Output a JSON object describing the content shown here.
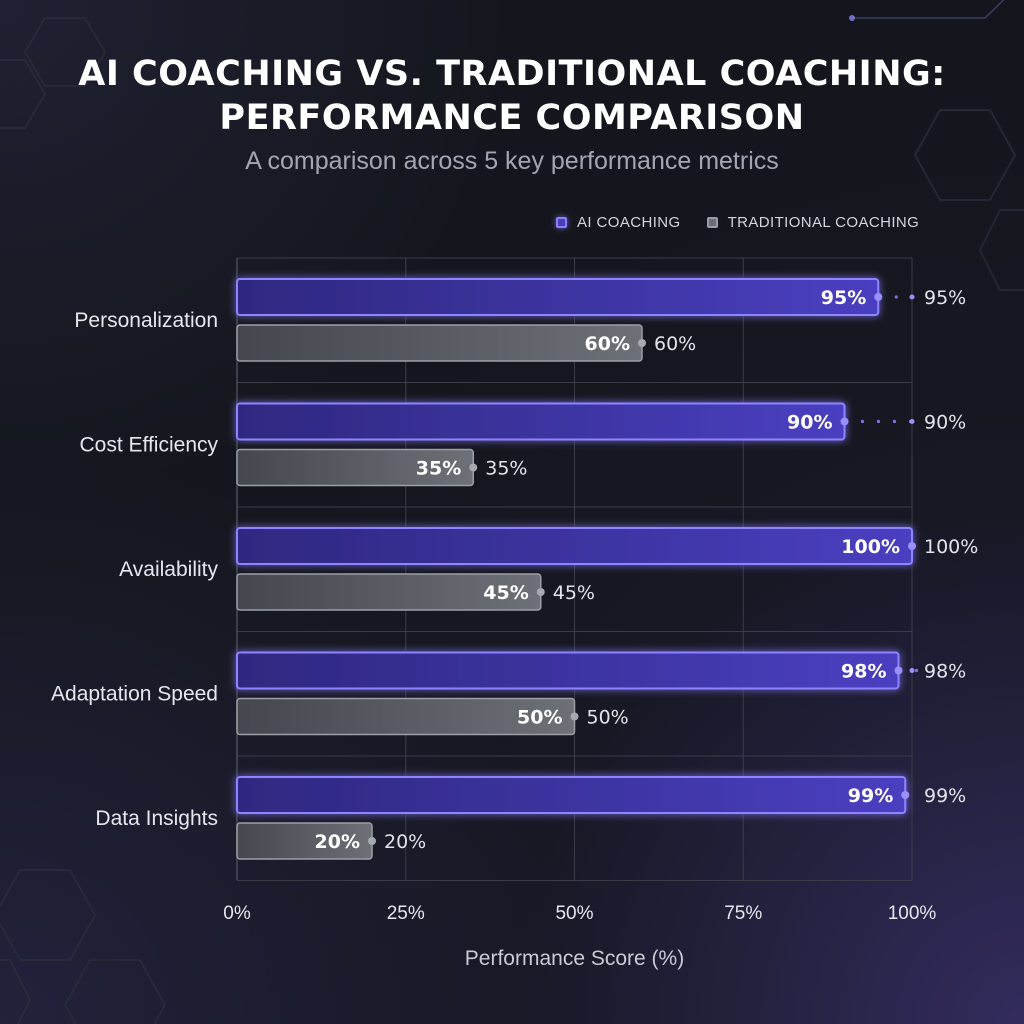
{
  "title_line1": "AI COACHING VS. TRADITIONAL COACHING:",
  "title_line2": "PERFORMANCE COMPARISON",
  "subtitle": "A comparison across 5 key performance metrics",
  "legend": {
    "ai_label": "AI COACHING",
    "traditional_label": "TRADITIONAL COACHING"
  },
  "colors": {
    "ai_fill": "#3d33a0",
    "ai_border": "#8f84ff",
    "traditional_fill": "#5a5c63",
    "traditional_border": "#9c9fa7",
    "grid": "#3a3c47"
  },
  "chart_data": {
    "type": "bar",
    "orientation": "horizontal",
    "title": "AI COACHING VS. TRADITIONAL COACHING: PERFORMANCE COMPARISON",
    "subtitle": "A comparison across 5 key performance metrics",
    "categories": [
      "Personalization",
      "Cost Efficiency",
      "Availability",
      "Adaptation Speed",
      "Data Insights"
    ],
    "series": [
      {
        "name": "AI COACHING",
        "values": [
          95,
          90,
          100,
          98,
          99
        ]
      },
      {
        "name": "TRADITIONAL COACHING",
        "values": [
          60,
          35,
          45,
          50,
          20
        ]
      }
    ],
    "value_labels": {
      "AI COACHING": [
        "95%",
        "90%",
        "100%",
        "98%",
        "99%"
      ],
      "TRADITIONAL COACHING": [
        "60%",
        "35%",
        "45%",
        "50%",
        "20%"
      ]
    },
    "xlabel": "Performance Score (%)",
    "ylabel": "",
    "xlim": [
      0,
      100
    ],
    "xticks": [
      0,
      25,
      50,
      75,
      100
    ],
    "xtick_labels": [
      "0%",
      "25%",
      "50%",
      "75%",
      "100%"
    ],
    "grid": true,
    "legend_position": "top-right"
  }
}
